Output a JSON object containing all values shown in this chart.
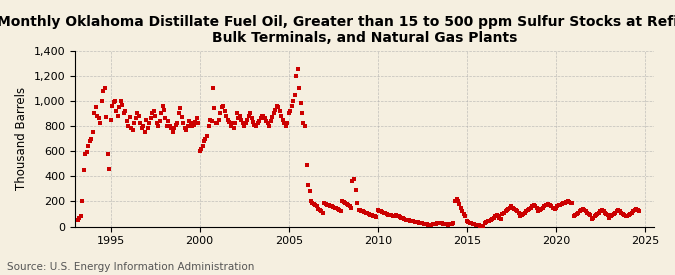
{
  "title_line1": "Monthly Oklahoma Distillate Fuel Oil, Greater than 15 to 500 ppm Sulfur Stocks at Refineries,",
  "title_line2": "Bulk Terminals, and Natural Gas Plants",
  "ylabel": "Thousand Barrels",
  "source": "Source: U.S. Energy Information Administration",
  "background_color": "#f5efe0",
  "plot_bg_color": "#f5efe0",
  "marker_color": "#cc0000",
  "marker_size": 5,
  "ylim": [
    0,
    1400
  ],
  "yticks": [
    0,
    200,
    400,
    600,
    800,
    1000,
    1200,
    1400
  ],
  "xlim_start": 1993.0,
  "xlim_end": 2025.5,
  "xticks": [
    1995,
    2000,
    2005,
    2010,
    2015,
    2020,
    2025
  ],
  "grid_color": "#aaaaaa",
  "title_fontsize": 10.0,
  "axis_fontsize": 8.5,
  "tick_fontsize": 8,
  "source_fontsize": 7.5,
  "data_x": [
    1993.17,
    1993.25,
    1993.33,
    1993.42,
    1993.5,
    1993.58,
    1993.67,
    1993.75,
    1993.83,
    1993.92,
    1994.0,
    1994.08,
    1994.17,
    1994.25,
    1994.33,
    1994.42,
    1994.5,
    1994.58,
    1994.67,
    1994.75,
    1994.83,
    1994.92,
    1995.0,
    1995.08,
    1995.17,
    1995.25,
    1995.33,
    1995.42,
    1995.5,
    1995.58,
    1995.67,
    1995.75,
    1995.83,
    1995.92,
    1996.0,
    1996.08,
    1996.17,
    1996.25,
    1996.33,
    1996.42,
    1996.5,
    1996.58,
    1996.67,
    1996.75,
    1996.83,
    1996.92,
    1997.0,
    1997.08,
    1997.17,
    1997.25,
    1997.33,
    1997.42,
    1997.5,
    1997.58,
    1997.67,
    1997.75,
    1997.83,
    1997.92,
    1998.0,
    1998.08,
    1998.17,
    1998.25,
    1998.33,
    1998.42,
    1998.5,
    1998.58,
    1998.67,
    1998.75,
    1998.83,
    1998.92,
    1999.0,
    1999.08,
    1999.17,
    1999.25,
    1999.33,
    1999.42,
    1999.5,
    1999.58,
    1999.67,
    1999.75,
    1999.83,
    1999.92,
    2000.0,
    2000.08,
    2000.17,
    2000.25,
    2000.33,
    2000.42,
    2000.5,
    2000.58,
    2000.67,
    2000.75,
    2000.83,
    2000.92,
    2001.0,
    2001.08,
    2001.17,
    2001.25,
    2001.33,
    2001.42,
    2001.5,
    2001.58,
    2001.67,
    2001.75,
    2001.83,
    2001.92,
    2002.0,
    2002.08,
    2002.17,
    2002.25,
    2002.33,
    2002.42,
    2002.5,
    2002.58,
    2002.67,
    2002.75,
    2002.83,
    2002.92,
    2003.0,
    2003.08,
    2003.17,
    2003.25,
    2003.33,
    2003.42,
    2003.5,
    2003.58,
    2003.67,
    2003.75,
    2003.83,
    2003.92,
    2004.0,
    2004.08,
    2004.17,
    2004.25,
    2004.33,
    2004.42,
    2004.5,
    2004.58,
    2004.67,
    2004.75,
    2004.83,
    2004.92,
    2005.0,
    2005.08,
    2005.17,
    2005.25,
    2005.33,
    2005.42,
    2005.5,
    2005.58,
    2005.67,
    2005.75,
    2005.83,
    2005.92,
    2006.0,
    2006.08,
    2006.17,
    2006.25,
    2006.33,
    2006.42,
    2006.5,
    2006.58,
    2006.67,
    2006.75,
    2006.83,
    2006.92,
    2007.0,
    2007.08,
    2007.17,
    2007.25,
    2007.33,
    2007.42,
    2007.5,
    2007.58,
    2007.67,
    2007.75,
    2007.83,
    2007.92,
    2008.0,
    2008.08,
    2008.17,
    2008.25,
    2008.33,
    2008.42,
    2008.5,
    2008.58,
    2008.67,
    2008.75,
    2008.83,
    2008.92,
    2009.0,
    2009.08,
    2009.17,
    2009.25,
    2009.33,
    2009.42,
    2009.5,
    2009.58,
    2009.67,
    2009.75,
    2009.83,
    2009.92,
    2010.0,
    2010.08,
    2010.17,
    2010.25,
    2010.33,
    2010.42,
    2010.5,
    2010.58,
    2010.67,
    2010.75,
    2010.83,
    2010.92,
    2011.0,
    2011.08,
    2011.17,
    2011.25,
    2011.33,
    2011.42,
    2011.5,
    2011.58,
    2011.67,
    2011.75,
    2011.83,
    2011.92,
    2012.0,
    2012.08,
    2012.17,
    2012.25,
    2012.33,
    2012.42,
    2012.5,
    2012.58,
    2012.67,
    2012.75,
    2012.83,
    2012.92,
    2013.0,
    2013.08,
    2013.17,
    2013.25,
    2013.33,
    2013.42,
    2013.5,
    2013.58,
    2013.67,
    2013.75,
    2013.83,
    2013.92,
    2014.0,
    2014.08,
    2014.17,
    2014.25,
    2014.33,
    2014.42,
    2014.5,
    2014.58,
    2014.67,
    2014.75,
    2014.83,
    2014.92,
    2015.0,
    2015.08,
    2015.17,
    2015.25,
    2015.33,
    2015.42,
    2015.5,
    2015.58,
    2015.67,
    2015.75,
    2015.83,
    2015.92,
    2016.0,
    2016.08,
    2016.17,
    2016.25,
    2016.33,
    2016.42,
    2016.5,
    2016.58,
    2016.67,
    2016.75,
    2016.83,
    2016.92,
    2017.0,
    2017.08,
    2017.17,
    2017.25,
    2017.33,
    2017.42,
    2017.5,
    2017.58,
    2017.67,
    2017.75,
    2017.83,
    2017.92,
    2018.0,
    2018.08,
    2018.17,
    2018.25,
    2018.33,
    2018.42,
    2018.5,
    2018.58,
    2018.67,
    2018.75,
    2018.83,
    2018.92,
    2019.0,
    2019.08,
    2019.17,
    2019.25,
    2019.33,
    2019.42,
    2019.5,
    2019.58,
    2019.67,
    2019.75,
    2019.83,
    2019.92,
    2020.0,
    2020.08,
    2020.17,
    2020.25,
    2020.33,
    2020.42,
    2020.5,
    2020.58,
    2020.67,
    2020.75,
    2020.83,
    2020.92,
    2021.0,
    2021.08,
    2021.17,
    2021.25,
    2021.33,
    2021.42,
    2021.5,
    2021.58,
    2021.67,
    2021.75,
    2021.83,
    2021.92,
    2022.0,
    2022.08,
    2022.17,
    2022.25,
    2022.33,
    2022.42,
    2022.5,
    2022.58,
    2022.67,
    2022.75,
    2022.83,
    2022.92,
    2023.0,
    2023.08,
    2023.17,
    2023.25,
    2023.33,
    2023.42,
    2023.5,
    2023.58,
    2023.67,
    2023.75,
    2023.83,
    2023.92,
    2024.0,
    2024.08,
    2024.17,
    2024.25,
    2024.33,
    2024.42,
    2024.5,
    2024.58,
    2024.67
  ],
  "data_y": [
    50,
    70,
    80,
    200,
    450,
    580,
    590,
    640,
    680,
    700,
    750,
    900,
    950,
    880,
    860,
    820,
    1000,
    1080,
    1100,
    870,
    580,
    460,
    850,
    960,
    990,
    1000,
    920,
    880,
    950,
    1000,
    970,
    900,
    920,
    840,
    800,
    870,
    780,
    770,
    820,
    860,
    900,
    880,
    820,
    780,
    800,
    750,
    850,
    780,
    820,
    860,
    900,
    920,
    880,
    820,
    800,
    840,
    900,
    960,
    930,
    860,
    800,
    840,
    800,
    780,
    750,
    780,
    810,
    820,
    900,
    940,
    870,
    820,
    780,
    770,
    800,
    840,
    820,
    800,
    810,
    830,
    860,
    820,
    600,
    620,
    640,
    680,
    700,
    720,
    800,
    850,
    840,
    1100,
    940,
    820,
    820,
    850,
    900,
    950,
    960,
    920,
    880,
    850,
    830,
    800,
    820,
    780,
    820,
    900,
    860,
    880,
    850,
    820,
    800,
    820,
    850,
    880,
    900,
    860,
    830,
    810,
    800,
    820,
    840,
    860,
    880,
    880,
    860,
    840,
    820,
    800,
    840,
    870,
    900,
    930,
    960,
    950,
    920,
    880,
    850,
    820,
    800,
    820,
    900,
    920,
    960,
    1000,
    1050,
    1200,
    1250,
    1100,
    980,
    900,
    820,
    800,
    490,
    330,
    280,
    200,
    190,
    180,
    175,
    160,
    140,
    130,
    120,
    110,
    190,
    180,
    175,
    170,
    165,
    160,
    155,
    150,
    145,
    140,
    130,
    125,
    200,
    195,
    185,
    180,
    170,
    160,
    150,
    360,
    380,
    290,
    185,
    135,
    130,
    125,
    120,
    115,
    110,
    105,
    100,
    95,
    90,
    85,
    80,
    75,
    130,
    125,
    120,
    115,
    110,
    105,
    100,
    95,
    90,
    88,
    85,
    83,
    90,
    85,
    80,
    75,
    70,
    65,
    60,
    55,
    50,
    48,
    45,
    42,
    40,
    38,
    35,
    33,
    30,
    28,
    25,
    22,
    20,
    18,
    15,
    12,
    15,
    18,
    20,
    22,
    25,
    28,
    30,
    25,
    22,
    20,
    18,
    15,
    18,
    20,
    22,
    25,
    200,
    220,
    200,
    180,
    150,
    120,
    100,
    80,
    40,
    35,
    30,
    25,
    20,
    18,
    15,
    12,
    10,
    8,
    6,
    5,
    30,
    35,
    40,
    45,
    50,
    60,
    70,
    80,
    90,
    80,
    70,
    60,
    100,
    110,
    120,
    130,
    140,
    150,
    160,
    150,
    140,
    130,
    120,
    110,
    80,
    90,
    100,
    110,
    120,
    130,
    140,
    150,
    160,
    170,
    160,
    150,
    120,
    130,
    140,
    150,
    160,
    170,
    175,
    180,
    170,
    160,
    150,
    140,
    150,
    160,
    170,
    175,
    180,
    185,
    190,
    195,
    200,
    195,
    190,
    185,
    80,
    90,
    100,
    110,
    120,
    130,
    140,
    130,
    120,
    110,
    100,
    90,
    60,
    70,
    80,
    90,
    100,
    110,
    120,
    130,
    120,
    110,
    100,
    90,
    70,
    80,
    90,
    100,
    110,
    120,
    130,
    120,
    110,
    100,
    90,
    80,
    80,
    90,
    100,
    110,
    120,
    130,
    140,
    130,
    120,
    110,
    100,
    90,
    75,
    80,
    85,
    90,
    95,
    100,
    105,
    100,
    95
  ]
}
